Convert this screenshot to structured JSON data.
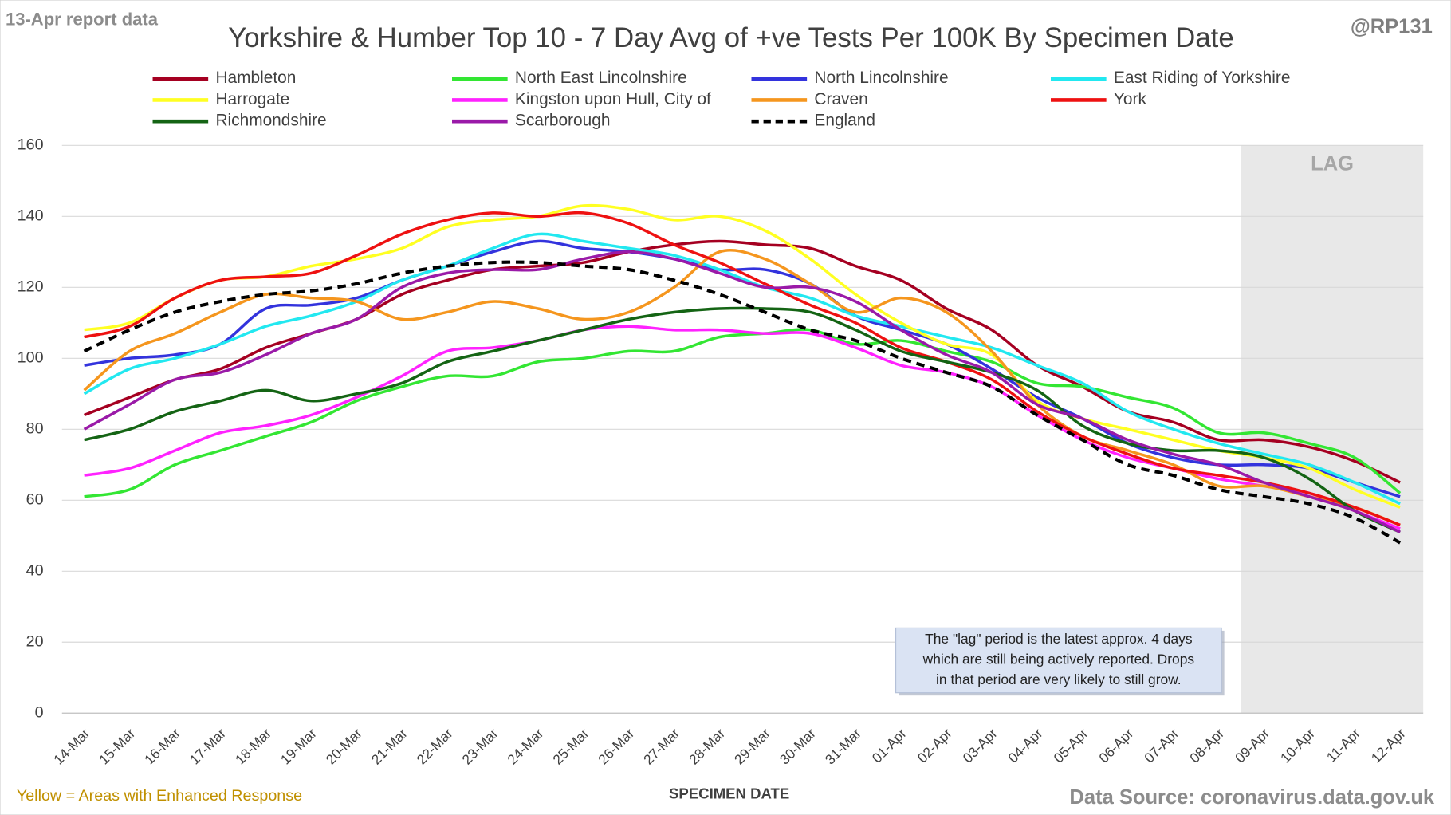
{
  "chart_data": {
    "type": "line",
    "title": "Yorkshire & Humber Top 10 - 7 Day Avg of +ve Tests Per 100K By Specimen Date",
    "report_note": "13-Apr report data",
    "author": "@RP131",
    "x_label": "SPECIMEN DATE",
    "footer_left": "Yellow = Areas with Enhanced Response",
    "footer_right": "Data Source: coronavirus.data.gov.uk",
    "shaded_region": {
      "label": "LAG",
      "from": "09-Apr"
    },
    "annotation": [
      "The \"lag\" period is the latest approx. 4 days",
      "which are still being actively reported. Drops",
      "in that period are very likely to still grow."
    ],
    "ylim": [
      0,
      160
    ],
    "yticks": [
      0,
      20,
      40,
      60,
      80,
      100,
      120,
      140,
      160
    ],
    "grid": true,
    "categories": [
      "14-Mar",
      "15-Mar",
      "16-Mar",
      "17-Mar",
      "18-Mar",
      "19-Mar",
      "20-Mar",
      "21-Mar",
      "22-Mar",
      "23-Mar",
      "24-Mar",
      "25-Mar",
      "26-Mar",
      "27-Mar",
      "28-Mar",
      "29-Mar",
      "30-Mar",
      "31-Mar",
      "01-Apr",
      "02-Apr",
      "03-Apr",
      "04-Apr",
      "05-Apr",
      "06-Apr",
      "07-Apr",
      "08-Apr",
      "09-Apr",
      "10-Apr",
      "11-Apr",
      "12-Apr"
    ],
    "series": [
      {
        "name": "Hambleton",
        "color": "#a50021",
        "values": [
          84,
          89,
          94,
          97,
          103,
          107,
          111,
          118,
          122,
          125,
          126,
          127,
          130,
          132,
          133,
          132,
          131,
          126,
          122,
          114,
          108,
          98,
          92,
          85,
          82,
          77,
          77,
          75,
          71,
          65
        ]
      },
      {
        "name": "North East Lincolnshire",
        "color": "#33e633",
        "values": [
          61,
          63,
          70,
          74,
          78,
          82,
          88,
          92,
          95,
          95,
          99,
          100,
          102,
          102,
          106,
          107,
          108,
          104,
          105,
          102,
          99,
          93,
          92,
          89,
          86,
          79,
          79,
          76,
          72,
          62
        ]
      },
      {
        "name": "North Lincolnshire",
        "color": "#3333dd",
        "values": [
          98,
          100,
          101,
          104,
          114,
          115,
          117,
          122,
          126,
          130,
          133,
          131,
          130,
          128,
          125,
          125,
          121,
          112,
          108,
          104,
          97,
          89,
          83,
          76,
          72,
          70,
          70,
          69,
          65,
          61
        ]
      },
      {
        "name": "East Riding of Yorkshire",
        "color": "#22e8f0",
        "values": [
          90,
          97,
          100,
          104,
          109,
          112,
          116,
          122,
          126,
          131,
          135,
          133,
          131,
          129,
          125,
          120,
          117,
          112,
          109,
          106,
          103,
          98,
          93,
          85,
          80,
          76,
          73,
          70,
          65,
          59
        ]
      },
      {
        "name": "Harrogate",
        "color": "#ffff22",
        "values": [
          108,
          110,
          117,
          122,
          123,
          126,
          128,
          131,
          137,
          139,
          140,
          143,
          142,
          139,
          140,
          136,
          128,
          118,
          110,
          104,
          101,
          88,
          83,
          80,
          77,
          74,
          72,
          69,
          63,
          58
        ]
      },
      {
        "name": "Kingston upon Hull, City of",
        "color": "#ff22ff",
        "values": [
          67,
          69,
          74,
          79,
          81,
          84,
          89,
          95,
          102,
          103,
          105,
          108,
          109,
          108,
          108,
          107,
          107,
          103,
          98,
          96,
          92,
          84,
          77,
          72,
          69,
          66,
          64,
          62,
          57,
          52
        ]
      },
      {
        "name": "Craven",
        "color": "#f5961e",
        "values": [
          91,
          102,
          107,
          113,
          118,
          117,
          116,
          111,
          113,
          116,
          114,
          111,
          113,
          120,
          130,
          128,
          121,
          113,
          117,
          113,
          102,
          87,
          78,
          74,
          70,
          64,
          64,
          61,
          58,
          53
        ]
      },
      {
        "name": "York",
        "color": "#ee1111",
        "values": [
          106,
          109,
          117,
          122,
          123,
          124,
          129,
          135,
          139,
          141,
          140,
          141,
          138,
          132,
          127,
          121,
          115,
          110,
          103,
          99,
          94,
          85,
          78,
          73,
          69,
          67,
          65,
          62,
          58,
          53
        ]
      },
      {
        "name": "Richmondshire",
        "color": "#146414",
        "values": [
          77,
          80,
          85,
          88,
          91,
          88,
          90,
          93,
          99,
          102,
          105,
          108,
          111,
          113,
          114,
          114,
          113,
          108,
          102,
          99,
          96,
          91,
          81,
          76,
          74,
          74,
          72,
          66,
          57,
          51
        ]
      },
      {
        "name": "Scarborough",
        "color": "#9a1aa8",
        "values": [
          80,
          87,
          94,
          96,
          101,
          107,
          111,
          120,
          124,
          125,
          125,
          128,
          130,
          128,
          124,
          120,
          120,
          116,
          108,
          101,
          96,
          87,
          83,
          77,
          73,
          70,
          65,
          61,
          57,
          51
        ]
      },
      {
        "name": "England",
        "color": "#000000",
        "dashed": true,
        "values": [
          102,
          108,
          113,
          116,
          118,
          119,
          121,
          124,
          126,
          127,
          127,
          126,
          125,
          122,
          118,
          113,
          108,
          105,
          100,
          96,
          92,
          84,
          77,
          70,
          67,
          63,
          61,
          59,
          55,
          48
        ]
      }
    ]
  }
}
